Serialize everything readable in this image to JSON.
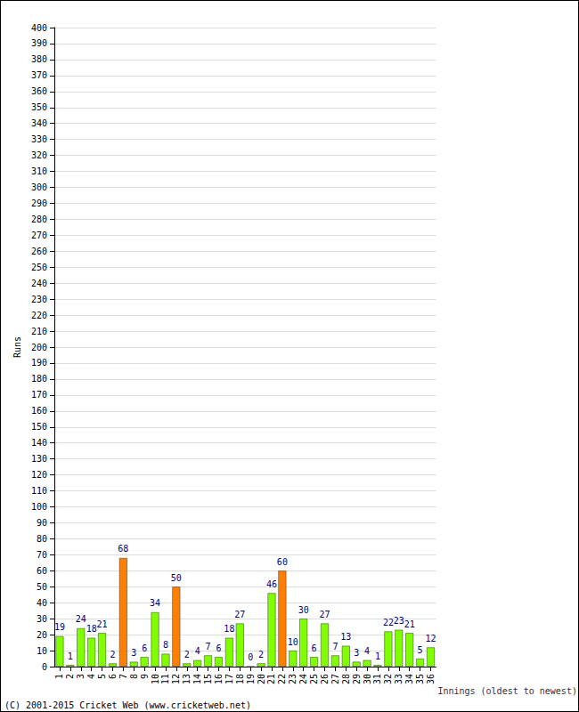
{
  "chart_data": {
    "type": "bar",
    "categories": [
      "1",
      "2",
      "3",
      "4",
      "5",
      "6",
      "7",
      "8",
      "9",
      "10",
      "11",
      "12",
      "13",
      "14",
      "15",
      "16",
      "17",
      "18",
      "19",
      "20",
      "21",
      "22",
      "23",
      "24",
      "25",
      "26",
      "27",
      "28",
      "29",
      "30",
      "31",
      "32",
      "33",
      "34",
      "35",
      "36"
    ],
    "values": [
      19,
      1,
      24,
      18,
      21,
      2,
      68,
      3,
      6,
      34,
      8,
      50,
      2,
      4,
      7,
      6,
      18,
      27,
      0,
      2,
      46,
      60,
      10,
      30,
      6,
      27,
      7,
      13,
      3,
      4,
      1,
      22,
      23,
      21,
      5,
      12
    ],
    "colors": [
      "#80ff00",
      "#80ff00",
      "#80ff00",
      "#80ff00",
      "#80ff00",
      "#80ff00",
      "#ff8000",
      "#80ff00",
      "#80ff00",
      "#80ff00",
      "#80ff00",
      "#ff8000",
      "#80ff00",
      "#80ff00",
      "#80ff00",
      "#80ff00",
      "#80ff00",
      "#80ff00",
      "#80ff00",
      "#80ff00",
      "#80ff00",
      "#ff8000",
      "#80ff00",
      "#80ff00",
      "#80ff00",
      "#80ff00",
      "#80ff00",
      "#80ff00",
      "#80ff00",
      "#80ff00",
      "#80ff00",
      "#80ff00",
      "#80ff00",
      "#80ff00",
      "#80ff00",
      "#80ff00"
    ],
    "x_label": "Innings (oldest to newest)",
    "y_label": "Runs",
    "annotations": [
      "(C) 2001-2015 Cricket Web (www.cricketweb.net)"
    ],
    "ylim": [
      0,
      400
    ],
    "yticks": [
      0,
      10,
      20,
      30,
      40,
      50,
      60,
      70,
      80,
      90,
      100,
      110,
      120,
      130,
      140,
      150,
      160,
      170,
      180,
      190,
      200,
      210,
      220,
      230,
      240,
      250,
      260,
      270,
      280,
      290,
      300,
      310,
      320,
      330,
      340,
      350,
      360,
      370,
      380,
      390,
      400
    ],
    "grid": true,
    "data_labels": true
  }
}
